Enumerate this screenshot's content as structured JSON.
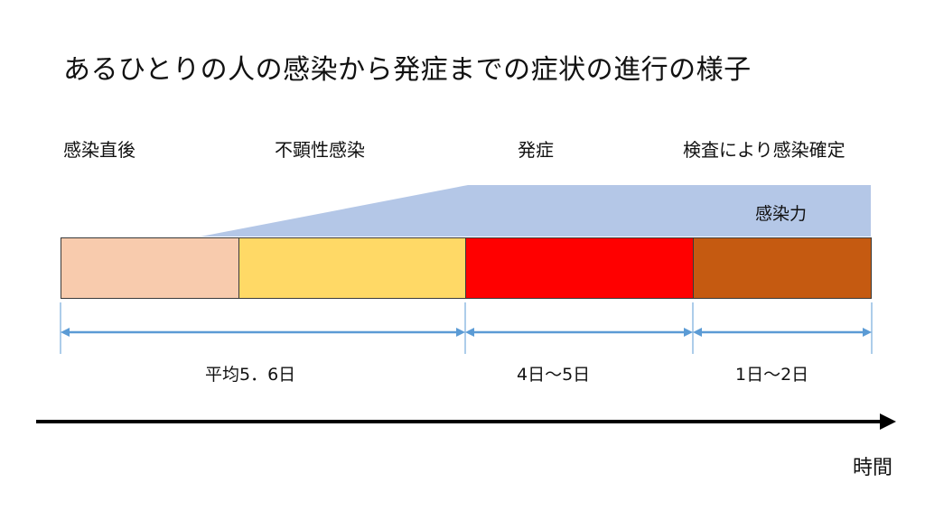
{
  "title": "あるひとりの人の感染から発症までの症状の進行の様子",
  "phases": [
    {
      "label": "感染直後",
      "color": "#f8cbad"
    },
    {
      "label": "不顕性感染",
      "color": "#ffd966"
    },
    {
      "label": "発症",
      "color": "#ff0000"
    },
    {
      "label": "検査により感染確定",
      "color": "#c55a11"
    }
  ],
  "infectivity": {
    "label": "感染力",
    "color": "#b4c7e7"
  },
  "durations": [
    {
      "label": "平均5．6日"
    },
    {
      "label": "4日～5日"
    },
    {
      "label": "1日～2日"
    }
  ],
  "dimension_color": "#5b9bd5",
  "time_axis": {
    "label": "時間",
    "color": "#000000"
  }
}
